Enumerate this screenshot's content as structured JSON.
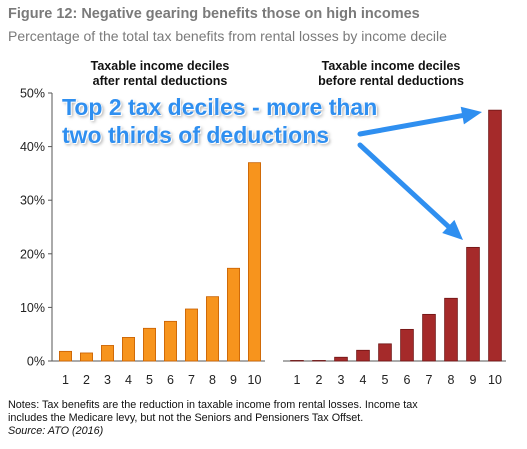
{
  "header": {
    "title": "Figure 12: Negative gearing benefits those on high incomes",
    "subtitle": "Percentage of the total tax benefits from rental losses by income decile"
  },
  "annotation": {
    "line1": "Top 2 tax deciles - more than",
    "line2": "two thirds of deductions",
    "color": "#2f8ff0"
  },
  "notes": {
    "line1": "Notes: Tax benefits are the reduction in taxable income from rental losses. Income tax",
    "line2": "includes the Medicare levy, but not the Seniors and Pensioners Tax Offset.",
    "source": "Source: ATO (2016)"
  },
  "chart_data": [
    {
      "type": "bar",
      "title_line1": "Taxable income deciles",
      "title_line2": "after rental deductions",
      "categories": [
        "1",
        "2",
        "3",
        "4",
        "5",
        "6",
        "7",
        "8",
        "9",
        "10"
      ],
      "values": [
        1.8,
        1.5,
        2.9,
        4.4,
        6.1,
        7.4,
        9.7,
        12.0,
        17.3,
        37.0
      ],
      "ylim": [
        0,
        50
      ],
      "yticks": [
        "0%",
        "10%",
        "20%",
        "30%",
        "40%",
        "50%"
      ],
      "fill": "#f7941d",
      "stroke": "#c75f00"
    },
    {
      "type": "bar",
      "title_line1": "Taxable income deciles",
      "title_line2": "before rental deductions",
      "categories": [
        "1",
        "2",
        "3",
        "4",
        "5",
        "6",
        "7",
        "8",
        "9",
        "10"
      ],
      "values": [
        0.1,
        0.1,
        0.7,
        2.0,
        3.2,
        5.9,
        8.7,
        11.7,
        21.2,
        46.8
      ],
      "ylim": [
        0,
        50
      ],
      "fill": "#a52a2a",
      "stroke": "#6e1414"
    }
  ]
}
